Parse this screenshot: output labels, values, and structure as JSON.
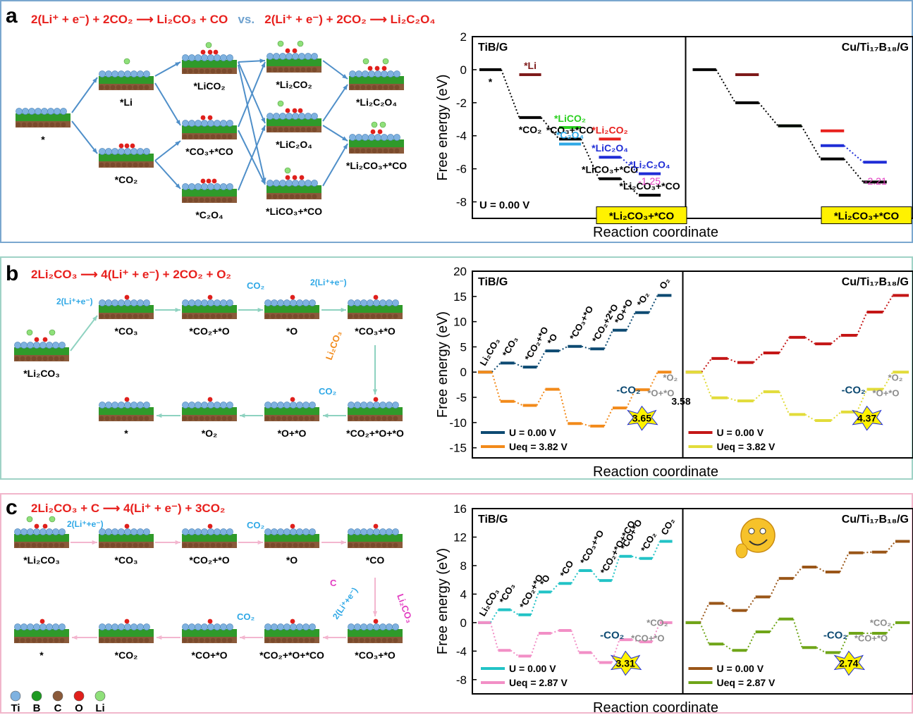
{
  "colors": {
    "red": "#e8201d",
    "blue": "#1f2dd6",
    "green": "#2bd020",
    "cyan": "#2fa8e6",
    "darkred": "#7e1a1a",
    "black": "#000000",
    "navy": "#0d4a72",
    "orange": "#f28a1a",
    "crimson": "#c41616",
    "yellow": "#e2dc3a",
    "teal": "#22c3c6",
    "pink": "#f28fc6",
    "brown": "#9a5618",
    "olive": "#6fa518",
    "magenta": "#e23cc1",
    "gray": "#8c8c8c",
    "flow_a": "#4f8fc9",
    "flow_b": "#8ed2c0",
    "flow_c": "#f3b6cf",
    "highlight": "#fff200"
  },
  "panels": {
    "a": {
      "label": "a",
      "eq1": "2(Li⁺ + e⁻) + 2CO₂ ⟶ Li₂CO₃ + CO",
      "vs": "vs.",
      "eq2": "2(Li⁺ + e⁻) + 2CO₂ ⟶ Li₂C₂O₄",
      "species": [
        "*",
        "*Li",
        "*CO₂",
        "*LiCO₂",
        "*CO₃+*CO",
        "*C₂O₄",
        "*Li₂CO₂",
        "*LiC₂O₄",
        "*LiCO₃+*CO",
        "*Li₂C₂O₄",
        "*Li₂CO₃+*CO"
      ]
    },
    "b": {
      "label": "b",
      "eq": "2Li₂CO₃ ⟶ 4(Li⁺ + e⁻) + 2CO₂ + O₂",
      "species": [
        "*Li₂CO₃",
        "*CO₃",
        "*CO₂+*O",
        "*O",
        "*CO₃+*O",
        "*CO₂+*O+*O",
        "*O+*O",
        "*O₂",
        "*"
      ],
      "arrows": [
        "2(Li⁺+e⁻)",
        "CO₂",
        "2(Li⁺+e⁻)",
        "Li₂CO₃",
        "CO₂"
      ]
    },
    "c": {
      "label": "c",
      "eq": "2Li₂CO₃ + C ⟶ 4(Li⁺ + e⁻) + 3CO₂",
      "species": [
        "*Li₂CO₃",
        "*CO₃",
        "*CO₂+*O",
        "*O",
        "*CO",
        "*CO₃+*O",
        "*CO₂+*O+*CO",
        "*CO+*O",
        "*CO₂",
        "*"
      ],
      "arrows": [
        "2(Li⁺+e⁻)",
        "CO₂",
        "C",
        "2(Li⁺+e⁻)",
        "Li₂CO₃",
        "CO₂"
      ]
    }
  },
  "legend_atoms": [
    {
      "sym": "Ti",
      "color": "#7fb2e0"
    },
    {
      "sym": "B",
      "color": "#1e9a22"
    },
    {
      "sym": "C",
      "color": "#8a5a3a"
    },
    {
      "sym": "O",
      "color": "#e0201c"
    },
    {
      "sym": "Li",
      "color": "#8fe07a"
    }
  ],
  "chart_data": [
    {
      "id": "a",
      "type": "line",
      "xlabel": "Reaction coordinate",
      "ylabel": "Free energy (eV)",
      "ylim": [
        -9,
        2
      ],
      "yticks": [
        2,
        0,
        -2,
        -4,
        -6,
        -8
      ],
      "subplots": [
        {
          "title": "TiB/G",
          "potential": "U = 0.00 V",
          "highlight": "*Li₂CO₃+*CO",
          "gap": "-1.25",
          "levels": [
            {
              "x": 0,
              "y": 0,
              "c": "black",
              "t": "*"
            },
            {
              "x": 1,
              "y": -0.3,
              "c": "darkred",
              "t": "*Li"
            },
            {
              "x": 1,
              "y": -2.9,
              "c": "black",
              "t": "*CO₂"
            },
            {
              "x": 2,
              "y": -3.5,
              "c": "green",
              "t": "*LiCO₂"
            },
            {
              "x": 2,
              "y": -4.2,
              "c": "black",
              "t": "*CO₃+*CO"
            },
            {
              "x": 2,
              "y": -4.5,
              "c": "cyan",
              "t": "*C₂O₄"
            },
            {
              "x": 3,
              "y": -4.2,
              "c": "red",
              "t": "*Li₂CO₂"
            },
            {
              "x": 3,
              "y": -5.3,
              "c": "blue",
              "t": "*LiC₂O₄"
            },
            {
              "x": 3,
              "y": -6.6,
              "c": "black",
              "t": "*LiCO₃+*CO"
            },
            {
              "x": 4,
              "y": -6.3,
              "c": "blue",
              "t": "*Li₂C₂O₄"
            },
            {
              "x": 4,
              "y": -7.6,
              "c": "black",
              "t": "*Li₂CO₃+*CO"
            }
          ]
        },
        {
          "title": "Cu/Ti₁₇B₁₈/G",
          "highlight": "*Li₂CO₃+*CO",
          "gap": "-2.21",
          "levels": [
            {
              "x": 0,
              "y": 0,
              "c": "black"
            },
            {
              "x": 1,
              "y": -0.3,
              "c": "darkred"
            },
            {
              "x": 1,
              "y": -2.0,
              "c": "black"
            },
            {
              "x": 2,
              "y": -3.4,
              "c": "green"
            },
            {
              "x": 2,
              "y": -3.4,
              "c": "black"
            },
            {
              "x": 3,
              "y": -3.7,
              "c": "red"
            },
            {
              "x": 3,
              "y": -4.6,
              "c": "blue"
            },
            {
              "x": 3,
              "y": -5.4,
              "c": "black"
            },
            {
              "x": 4,
              "y": -5.6,
              "c": "blue",
              "t": "*Li₂C₂O₄"
            },
            {
              "x": 4,
              "y": -6.8,
              "c": "black"
            }
          ]
        }
      ]
    },
    {
      "id": "b",
      "type": "line",
      "xlabel": "Reaction coordinate",
      "ylabel": "Free energy (eV)",
      "ylim": [
        -17,
        20
      ],
      "yticks": [
        20,
        15,
        10,
        5,
        0,
        -5,
        -10,
        -15
      ],
      "subplots": [
        {
          "title": "TiB/G",
          "series": [
            {
              "name": "U = 0.00 V",
              "color": "navy",
              "values": [
                0,
                1.8,
                1,
                4.2,
                5.1,
                4.6,
                8.3,
                11.8,
                15.2
              ],
              "labels": [
                "Li₂CO₃",
                "*CO₃",
                "*CO₂+*O",
                "*O",
                "*CO₃+*O",
                "*CO₂+2*O",
                "*O+*O",
                "*O₂",
                "O₂"
              ]
            },
            {
              "name": "Ueq = 3.82 V",
              "color": "orange",
              "values": [
                0,
                -5.8,
                -6.6,
                -3.4,
                -10.2,
                -10.7,
                -7.1,
                -3.5,
                0
              ]
            }
          ],
          "annot": {
            "-CO2": "-CO₂",
            "o_o": "*O+*O",
            "o2": "*O₂",
            "gap": "3.58",
            "burst": "3.65"
          }
        },
        {
          "title": "Cu/Ti₁₇B₁₈/G",
          "series": [
            {
              "name": "U = 0.00 V",
              "color": "crimson",
              "values": [
                0,
                2.7,
                1.9,
                3.8,
                6.9,
                5.6,
                7.3,
                11.9,
                15.2
              ]
            },
            {
              "name": "Ueq = 3.82 V",
              "color": "yellow",
              "values": [
                0,
                -5.1,
                -5.7,
                -3.9,
                -8.4,
                -9.6,
                -7.9,
                -3.4,
                0
              ]
            }
          ],
          "annot": {
            "-CO2": "-CO₂",
            "o_o": "*O+*O",
            "o2": "*O₂",
            "burst": "4.37"
          }
        }
      ]
    },
    {
      "id": "c",
      "type": "line",
      "xlabel": "Reaction coordinate",
      "ylabel": "Free energy (eV)",
      "ylim": [
        -10,
        16
      ],
      "yticks": [
        16,
        12,
        8,
        4,
        0,
        -4,
        -8
      ],
      "subplots": [
        {
          "title": "TiB/G",
          "series": [
            {
              "name": "U = 0.00 V",
              "color": "teal",
              "values": [
                0,
                1.8,
                1.1,
                4.3,
                5.5,
                7.3,
                5.9,
                9.3,
                9.0,
                11.4
              ],
              "labels": [
                "Li₂CO₃",
                "*CO₃",
                "*CO₂+*O",
                "*O",
                "*CO",
                "*CO₃+*O",
                "*CO₂+*O+*CO",
                "*CO+*O",
                "*CO₂",
                "CO₂"
              ]
            },
            {
              "name": "Ueq = 2.87 V",
              "color": "pink",
              "values": [
                0,
                -3.9,
                -4.7,
                -1.5,
                -1.1,
                -4.2,
                -5.6,
                -2.4,
                -2.7,
                0
              ]
            }
          ],
          "annot": {
            "-CO2": "-CO₂",
            "co_o": "*CO+*O",
            "co2": "*CO₂",
            "burst": "3.31"
          }
        },
        {
          "title": "Cu/Ti₁₇B₁₈/G",
          "series": [
            {
              "name": "U = 0.00 V",
              "color": "brown",
              "values": [
                0,
                2.7,
                1.7,
                3.6,
                6.2,
                7.8,
                7.1,
                9.8,
                9.9,
                11.4
              ]
            },
            {
              "name": "Ueq = 2.87 V",
              "color": "olive",
              "values": [
                0,
                -3.0,
                -3.9,
                -1.3,
                0.5,
                -3.5,
                -4.2,
                -1.5,
                -1.5,
                0
              ]
            }
          ],
          "annot": {
            "-CO2": "-CO₂",
            "co_o": "*CO+*O",
            "co2": "*CO₂",
            "burst": "2.74"
          }
        }
      ]
    }
  ]
}
